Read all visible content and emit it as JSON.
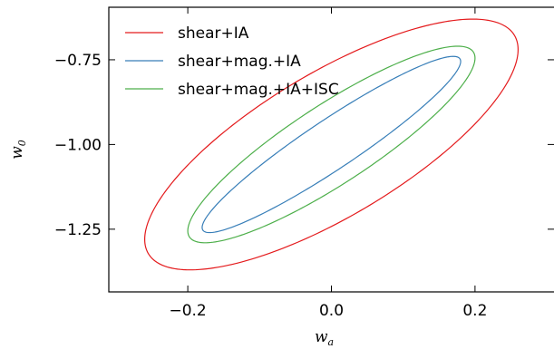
{
  "chart_data": {
    "type": "contour",
    "title": "",
    "xlabel": "w",
    "xlabel_sub": "a",
    "ylabel": "w",
    "ylabel_sub": "0",
    "xlim": [
      -0.31,
      0.31
    ],
    "ylim": [
      -1.435,
      -0.595
    ],
    "xticks": [
      {
        "value": -0.2,
        "label": "−0.2"
      },
      {
        "value": 0.0,
        "label": "0.0"
      },
      {
        "value": 0.2,
        "label": "0.2"
      }
    ],
    "yticks": [
      {
        "value": -0.75,
        "label": "−0.75"
      },
      {
        "value": -1.0,
        "label": "−1.00"
      },
      {
        "value": -1.25,
        "label": "−1.25"
      }
    ],
    "grid": false,
    "legend": "top-left",
    "series": [
      {
        "name": "shear+IA",
        "color": "#e41a1c",
        "center": [
          0.0,
          -1.0
        ],
        "x_extent": [
          -0.275,
          0.275
        ],
        "y_extent": [
          -1.38,
          -0.62
        ],
        "points_at_extremes": {
          "max_x": [
            0.26,
            -0.72
          ],
          "min_x": [
            -0.26,
            -1.28
          ],
          "max_y": [
            0.23,
            -0.63
          ],
          "min_y": [
            -0.23,
            -1.37
          ]
        }
      },
      {
        "name": "shear+mag.+IA",
        "color": "#377eb8",
        "center": [
          0.0,
          -1.0
        ],
        "x_extent": [
          -0.185,
          0.185
        ],
        "y_extent": [
          -1.26,
          -0.74
        ],
        "points_at_extremes": {
          "max_x": [
            0.18,
            -0.755
          ],
          "min_x": [
            -0.18,
            -1.245
          ],
          "max_y": [
            0.17,
            -0.74
          ],
          "min_y": [
            -0.17,
            -1.26
          ]
        }
      },
      {
        "name": "shear+mag.+IA+ISC",
        "color": "#4daf4a",
        "center": [
          0.0,
          -1.0
        ],
        "x_extent": [
          -0.2,
          0.2
        ],
        "y_extent": [
          -1.29,
          -0.71
        ],
        "points_at_extremes": {
          "max_x": [
            0.2,
            -0.745
          ],
          "min_x": [
            -0.2,
            -1.255
          ],
          "max_y": [
            0.18,
            -0.71
          ],
          "min_y": [
            -0.18,
            -1.29
          ]
        }
      }
    ]
  }
}
